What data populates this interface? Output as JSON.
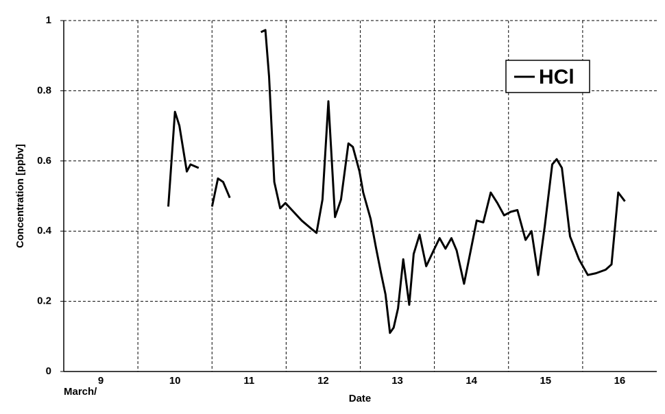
{
  "chart_data": {
    "type": "line",
    "xlabel": "Date",
    "ylabel": "Concentration [ppbv]",
    "xnote": "March/",
    "categories": [
      "9",
      "10",
      "11",
      "12",
      "13",
      "14",
      "15",
      "16"
    ],
    "xlim": [
      9,
      17
    ],
    "xticks": [
      10,
      11,
      12,
      13,
      14,
      15,
      16
    ],
    "ylim": [
      0,
      1
    ],
    "yticks": [
      0,
      0.2,
      0.4,
      0.6,
      0.8,
      1
    ],
    "grid": true,
    "legend": "top-right",
    "x": [
      10.41,
      10.5,
      10.56,
      10.66,
      10.71,
      10.82,
      null,
      11.0,
      11.08,
      11.15,
      11.24,
      null,
      11.66,
      11.72,
      11.77,
      11.84,
      11.92,
      11.99,
      12.1,
      12.21,
      12.35,
      12.41,
      12.49,
      12.57,
      12.66,
      12.74,
      12.84,
      12.9,
      12.99,
      13.04,
      13.14,
      13.21,
      13.28,
      13.34,
      13.4,
      13.45,
      13.51,
      13.58,
      13.66,
      13.72,
      13.8,
      13.89,
      13.99,
      14.07,
      14.15,
      14.23,
      14.3,
      14.4,
      14.49,
      14.57,
      14.66,
      14.76,
      14.85,
      14.94,
      15.03,
      15.12,
      15.23,
      15.31,
      15.4,
      15.49,
      15.59,
      15.65,
      15.72,
      15.83,
      15.95,
      16.07,
      16.18,
      16.31,
      16.39,
      16.48,
      16.57
    ],
    "series": [
      {
        "name": "HCl",
        "color": "#000000",
        "values": [
          0.47,
          0.74,
          0.7,
          0.57,
          0.59,
          0.58,
          null,
          0.47,
          0.55,
          0.54,
          0.495,
          null,
          0.967,
          0.973,
          0.84,
          0.54,
          0.465,
          0.48,
          0.455,
          0.43,
          0.405,
          0.395,
          0.49,
          0.77,
          0.44,
          0.49,
          0.65,
          0.64,
          0.57,
          0.51,
          0.435,
          0.355,
          0.28,
          0.22,
          0.11,
          0.125,
          0.18,
          0.32,
          0.19,
          0.335,
          0.39,
          0.3,
          0.345,
          0.38,
          0.35,
          0.38,
          0.345,
          0.25,
          0.345,
          0.43,
          0.425,
          0.51,
          0.48,
          0.445,
          0.455,
          0.46,
          0.375,
          0.4,
          0.275,
          0.415,
          0.59,
          0.605,
          0.58,
          0.385,
          0.32,
          0.275,
          0.28,
          0.29,
          0.305,
          0.51,
          0.485
        ]
      }
    ]
  }
}
